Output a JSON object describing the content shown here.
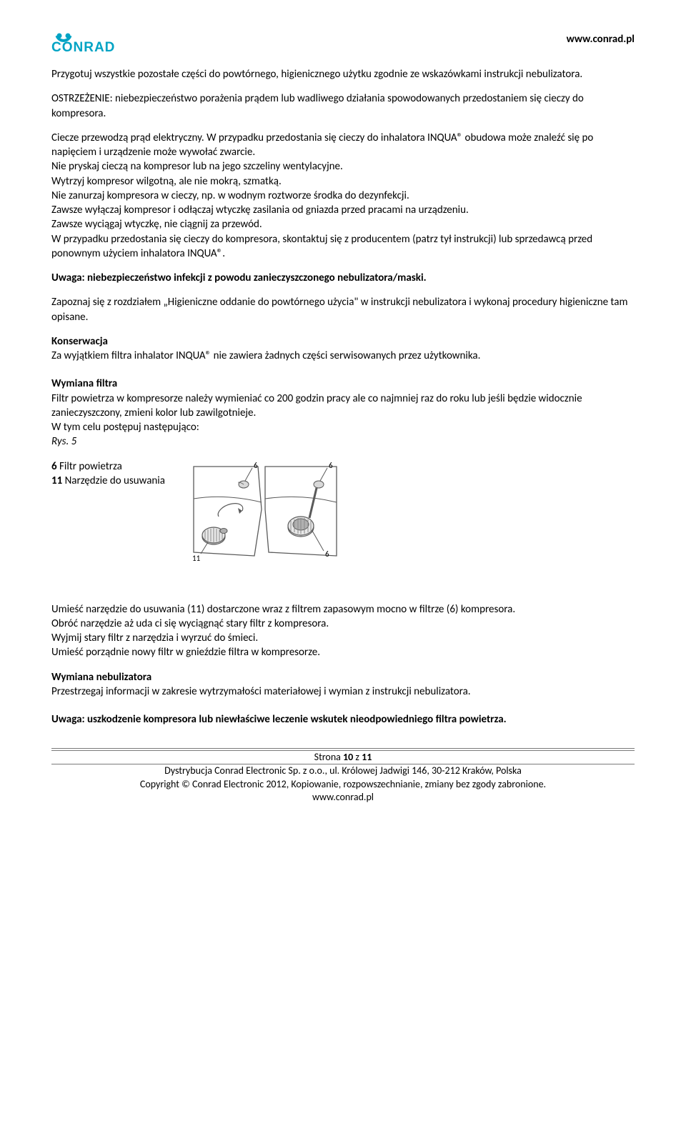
{
  "header": {
    "logo_text": "CONRAD",
    "logo_color": "#00a3c4",
    "url": "www.conrad.pl"
  },
  "body": {
    "p1": "Przygotuj wszystkie pozostałe części do powtórnego, higienicznego użytku zgodnie ze wskazówkami instrukcji nebulizatora.",
    "p2": "OSTRZEŻENIE: niebezpieczeństwo porażenia prądem lub wadliwego działania spowodowanych przedostaniem się cieczy do kompresora.",
    "p3": "Ciecze przewodzą prąd elektryczny. W przypadku przedostania się cieczy do inhalatora INQUA® obudowa może znaleźć się po napięciem i urządzenie może wywołać zwarcie.\nNie pryskaj cieczą na kompresor lub na jego szczeliny wentylacyjne.\nWytrzyj kompresor wilgotną, ale nie mokrą, szmatką.\nNie zanurzaj kompresora w cieczy, np. w wodnym roztworze środka do dezynfekcji.\nZawsze wyłączaj kompresor i odłączaj wtyczkę zasilania od gniazda przed pracami na urządzeniu.\nZawsze wyciągaj wtyczkę, nie ciągnij za przewód.\nW przypadku przedostania się cieczy do kompresora, skontaktuj się z producentem (patrz tył instrukcji) lub sprzedawcą przed ponownym użyciem inhalatora INQUA®.",
    "p4": "Uwaga: niebezpieczeństwo infekcji z powodu zanieczyszczonego nebulizatora/maski.",
    "p5": "Zapoznaj się z rozdziałem „Higieniczne oddanie do powtórnego użycia\" w instrukcji nebulizatora i wykonaj procedury higieniczne tam opisane.",
    "konserwacja_head": "Konserwacja",
    "konserwacja_body": "Za wyjątkiem filtra inhalator INQUA® nie zawiera żadnych części serwisowanych przez użytkownika.",
    "wymiana_head": "Wymiana filtra",
    "wymiana_body": "Filtr powietrza w kompresorze należy wymieniać co 200 godzin pracy ale co najmniej raz do roku lub jeśli będzie widocznie zanieczyszczony, zmieni kolor lub zawilgotnieje.\nW tym celu postępuj następująco:",
    "rys_label": "Rys. 5",
    "fig_legend_6": "6 Filtr powietrza",
    "fig_legend_11": "11 Narzędzie do usuwania",
    "p6": "Umieść narzędzie do usuwania (11) dostarczone wraz z filtrem zapasowym mocno w filtrze (6) kompresora.\nObróć narzędzie aż uda ci się wyciągnąć stary filtr z kompresora.\nWyjmij stary filtr z narzędzia i wyrzuć do śmieci.\nUmieść porządnie nowy filtr w gnieździe filtra w kompresorze.",
    "wymiana_neb_head": "Wymiana nebulizatora",
    "wymiana_neb_body": "Przestrzegaj informacji w zakresie wytrzymałości materiałowej i wymian z instrukcji nebulizatora.",
    "p7": "Uwaga: uszkodzenie kompresora lub niewłaściwe leczenie wskutek nieodpowiedniego filtra powietrza."
  },
  "figure": {
    "labels": {
      "l6": "6",
      "l11": "11"
    },
    "colors": {
      "stroke": "#5a5a5a",
      "fill_light": "#d9d9d9",
      "fill_mid": "#b0b0b0",
      "fill_dark": "#8a8a8a",
      "bg": "#ffffff"
    }
  },
  "footer": {
    "page_label_prefix": "Strona ",
    "page_num": "10",
    "page_sep": " z ",
    "page_total": "11",
    "line1": "Dystrybucja Conrad Electronic Sp. z o.o., ul. Królowej Jadwigi 146, 30-212 Kraków, Polska",
    "line2": "Copyright © Conrad Electronic 2012, Kopiowanie, rozpowszechnianie, zmiany bez zgody zabronione.",
    "line3": "www.conrad.pl"
  }
}
